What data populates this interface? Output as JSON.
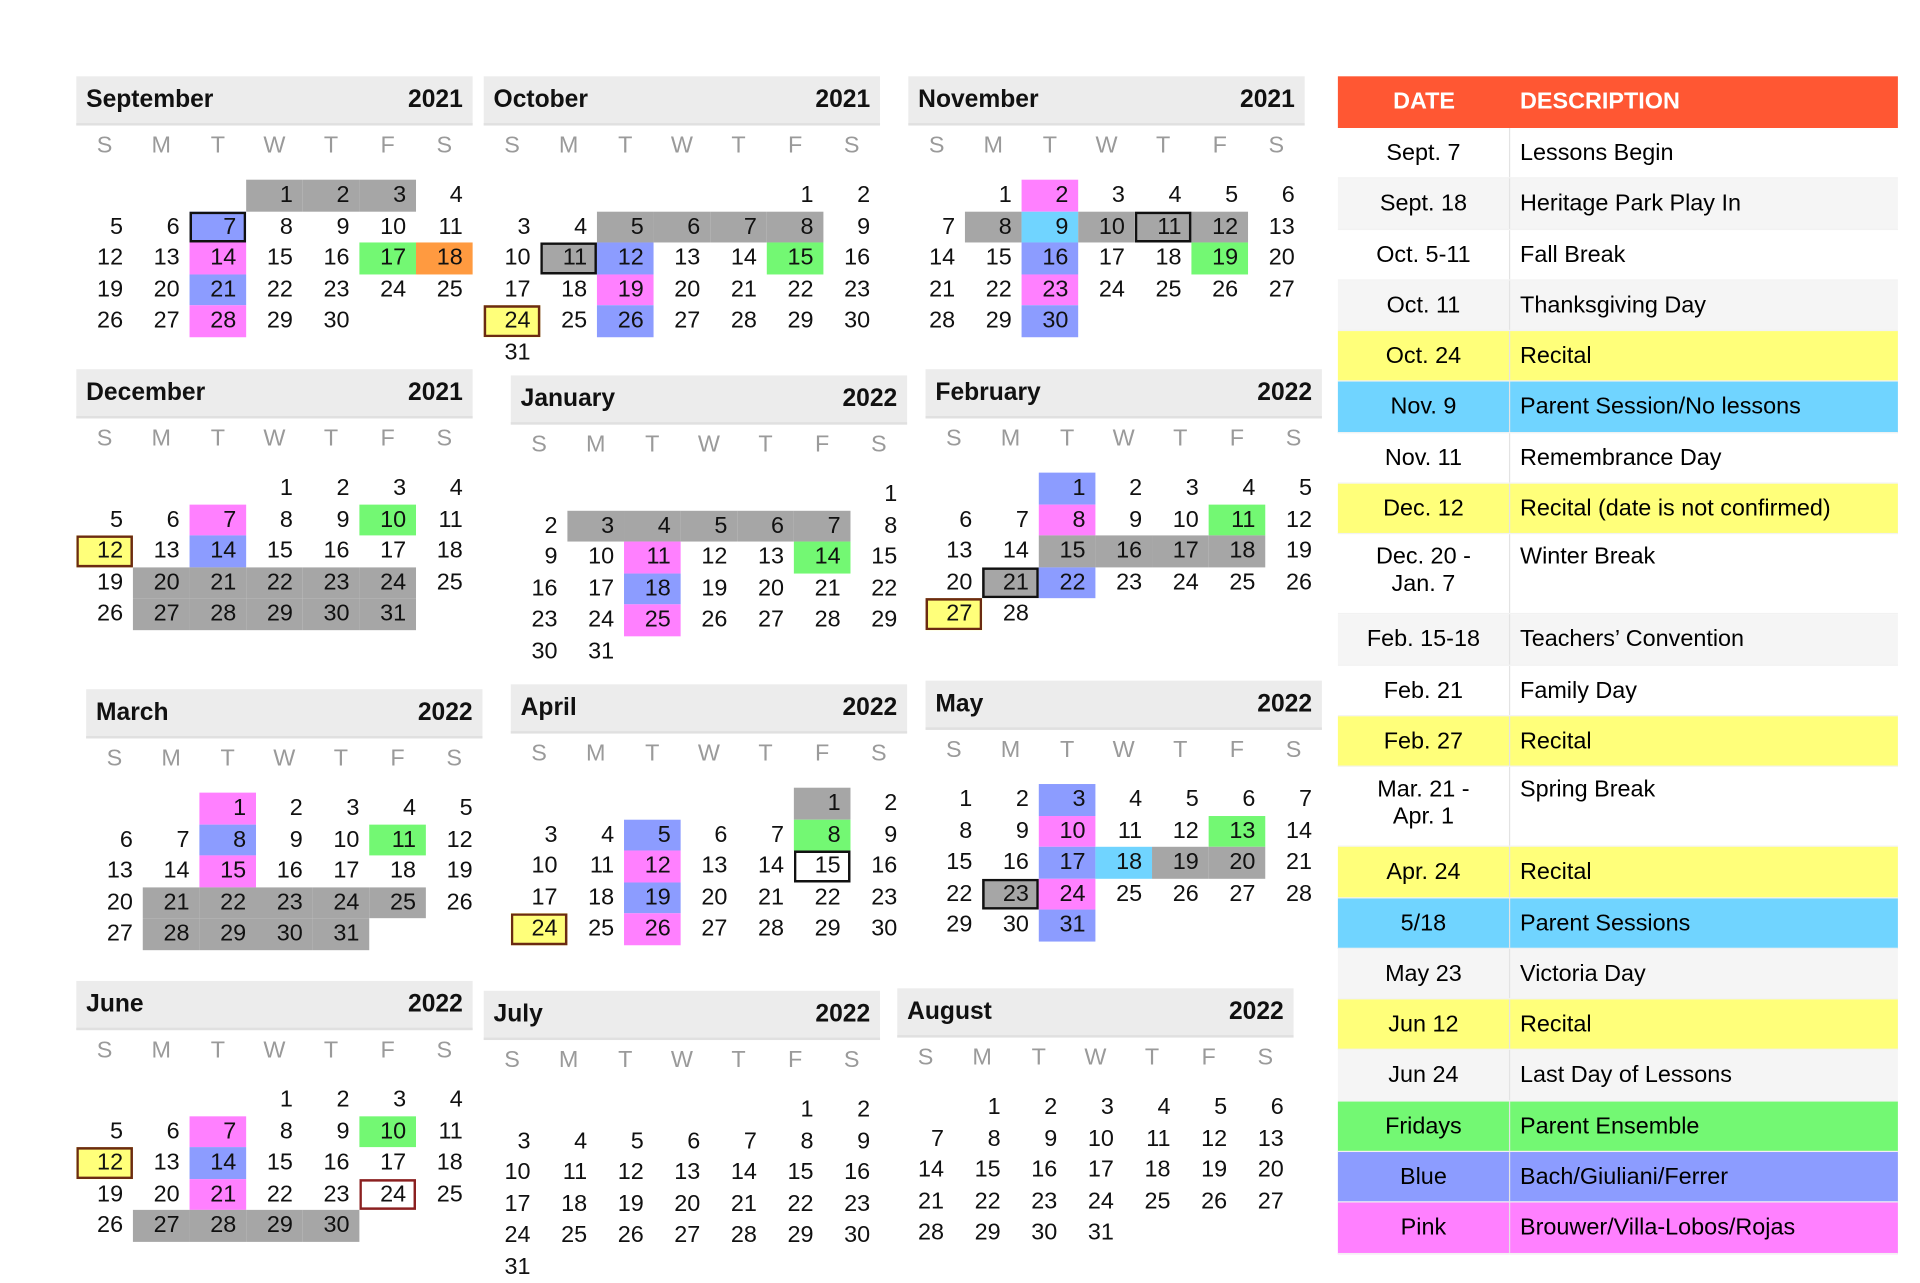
{
  "weekdays": [
    "S",
    "M",
    "T",
    "W",
    "T",
    "F",
    "S"
  ],
  "colors": {
    "gray": "#a6a6a6",
    "blue": "#8c9cff",
    "pink": "#ff80ff",
    "green": "#73f873",
    "orange": "#ff9a40",
    "cyan": "#70d4ff",
    "yellow": "#ffff7a",
    "header": "#ff5733"
  },
  "months": [
    {
      "name": "September",
      "year": "2021",
      "start_weekday": 3,
      "days": 30,
      "marks": {
        "1": "g",
        "2": "g",
        "3": "g",
        "7": "b bx",
        "14": "p",
        "17": "gr",
        "18": "o",
        "21": "b",
        "28": "p"
      }
    },
    {
      "name": "October",
      "year": "2021",
      "start_weekday": 5,
      "days": 31,
      "marks": {
        "5": "g",
        "6": "g",
        "7": "g",
        "8": "g",
        "11": "g bx",
        "12": "b",
        "15": "gr",
        "19": "p",
        "24": "y",
        "26": "b"
      }
    },
    {
      "name": "November",
      "year": "2021",
      "start_weekday": 1,
      "days": 30,
      "marks": {
        "2": "p",
        "8": "g",
        "9": "c",
        "10": "g",
        "11": "g bx",
        "12": "g",
        "16": "b",
        "19": "gr",
        "23": "p",
        "30": "b"
      }
    },
    {
      "name": "December",
      "year": "2021",
      "start_weekday": 3,
      "days": 31,
      "marks": {
        "7": "p",
        "10": "gr",
        "12": "y",
        "14": "b",
        "20": "g",
        "21": "g",
        "22": "g",
        "23": "g",
        "24": "g",
        "27": "g",
        "28": "g",
        "29": "g",
        "30": "g",
        "31": "g"
      }
    },
    {
      "name": "January",
      "year": "2022",
      "start_weekday": 6,
      "days": 31,
      "marks": {
        "3": "g",
        "4": "g",
        "5": "g",
        "6": "g",
        "7": "g",
        "11": "p",
        "14": "gr",
        "18": "b",
        "25": "p"
      }
    },
    {
      "name": "February",
      "year": "2022",
      "start_weekday": 2,
      "days": 28,
      "marks": {
        "1": "b",
        "8": "p",
        "11": "gr",
        "15": "g",
        "16": "g",
        "17": "g",
        "18": "g",
        "21": "g bx",
        "22": "b",
        "27": "y"
      }
    },
    {
      "name": "March",
      "year": "2022",
      "start_weekday": 2,
      "days": 31,
      "marks": {
        "1": "p",
        "8": "b",
        "11": "gr",
        "15": "p",
        "21": "g",
        "22": "g",
        "23": "g",
        "24": "g",
        "25": "g",
        "28": "g",
        "29": "g",
        "30": "g",
        "31": "g"
      }
    },
    {
      "name": "April",
      "year": "2022",
      "start_weekday": 5,
      "days": 30,
      "marks": {
        "1": "g",
        "5": "b",
        "8": "gr",
        "12": "p",
        "15": "bx",
        "19": "b",
        "24": "y",
        "26": "p"
      }
    },
    {
      "name": "May",
      "year": "2022",
      "start_weekday": 0,
      "days": 31,
      "marks": {
        "3": "b",
        "10": "p",
        "13": "gr",
        "17": "b",
        "18": "c",
        "19": "g",
        "20": "g",
        "23": "g bx",
        "24": "p",
        "31": "b"
      }
    },
    {
      "name": "June",
      "year": "2022",
      "start_weekday": 3,
      "days": 30,
      "marks": {
        "7": "p",
        "10": "gr",
        "12": "y",
        "14": "b",
        "21": "p",
        "24": "rb",
        "27": "g",
        "28": "g",
        "29": "g",
        "30": "g"
      }
    },
    {
      "name": "July",
      "year": "2022",
      "start_weekday": 5,
      "days": 31,
      "marks": {}
    },
    {
      "name": "August",
      "year": "2022",
      "start_weekday": 1,
      "days": 31,
      "marks": {}
    }
  ],
  "legend": {
    "header": {
      "date": "DATE",
      "description": "DESCRIPTION"
    },
    "rows": [
      {
        "date": "Sept. 7",
        "description": "Lessons Begin",
        "bg": "white"
      },
      {
        "date": "Sept. 18",
        "description": "Heritage Park Play In",
        "bg": "grey"
      },
      {
        "date": "Oct. 5-11",
        "description": "Fall Break",
        "bg": "white"
      },
      {
        "date": "Oct. 11",
        "description": "Thanksgiving Day",
        "bg": "grey"
      },
      {
        "date": "Oct. 24",
        "description": "Recital",
        "bg": "yellow"
      },
      {
        "date": "Nov. 9",
        "description": "Parent Session/No lessons",
        "bg": "cyan"
      },
      {
        "date": "Nov. 11",
        "description": "Remembrance Day",
        "bg": "white"
      },
      {
        "date": "Dec. 12",
        "description": "Recital  (date is not confirmed)",
        "bg": "yellow"
      },
      {
        "date": "Dec. 20 - Jan. 7",
        "description": "Winter Break",
        "bg": "white",
        "tall": true
      },
      {
        "date": "Feb. 15-18",
        "description": "Teachers’ Convention",
        "bg": "grey"
      },
      {
        "date": "Feb. 21",
        "description": "Family Day",
        "bg": "white"
      },
      {
        "date": "Feb. 27",
        "description": "Recital",
        "bg": "yellow"
      },
      {
        "date": "Mar. 21 - Apr. 1",
        "description": "Spring Break",
        "bg": "white",
        "tall": true
      },
      {
        "date": "Apr. 24",
        "description": "Recital",
        "bg": "yellow"
      },
      {
        "date": "5/18",
        "description": "Parent Sessions",
        "bg": "cyan"
      },
      {
        "date": "May 23",
        "description": "Victoria Day",
        "bg": "grey"
      },
      {
        "date": "Jun 12",
        "description": "Recital",
        "bg": "yellow"
      },
      {
        "date": "Jun 24",
        "description": "Last Day of Lessons",
        "bg": "grey"
      },
      {
        "date": "Fridays",
        "description": "Parent Ensemble",
        "bg": "green"
      },
      {
        "date": "Blue",
        "description": "Bach/Giuliani/Ferrer",
        "bg": "blue"
      },
      {
        "date": "Pink",
        "description": "Brouwer/Villa-Lobos/Rojas",
        "bg": "pink"
      }
    ]
  }
}
